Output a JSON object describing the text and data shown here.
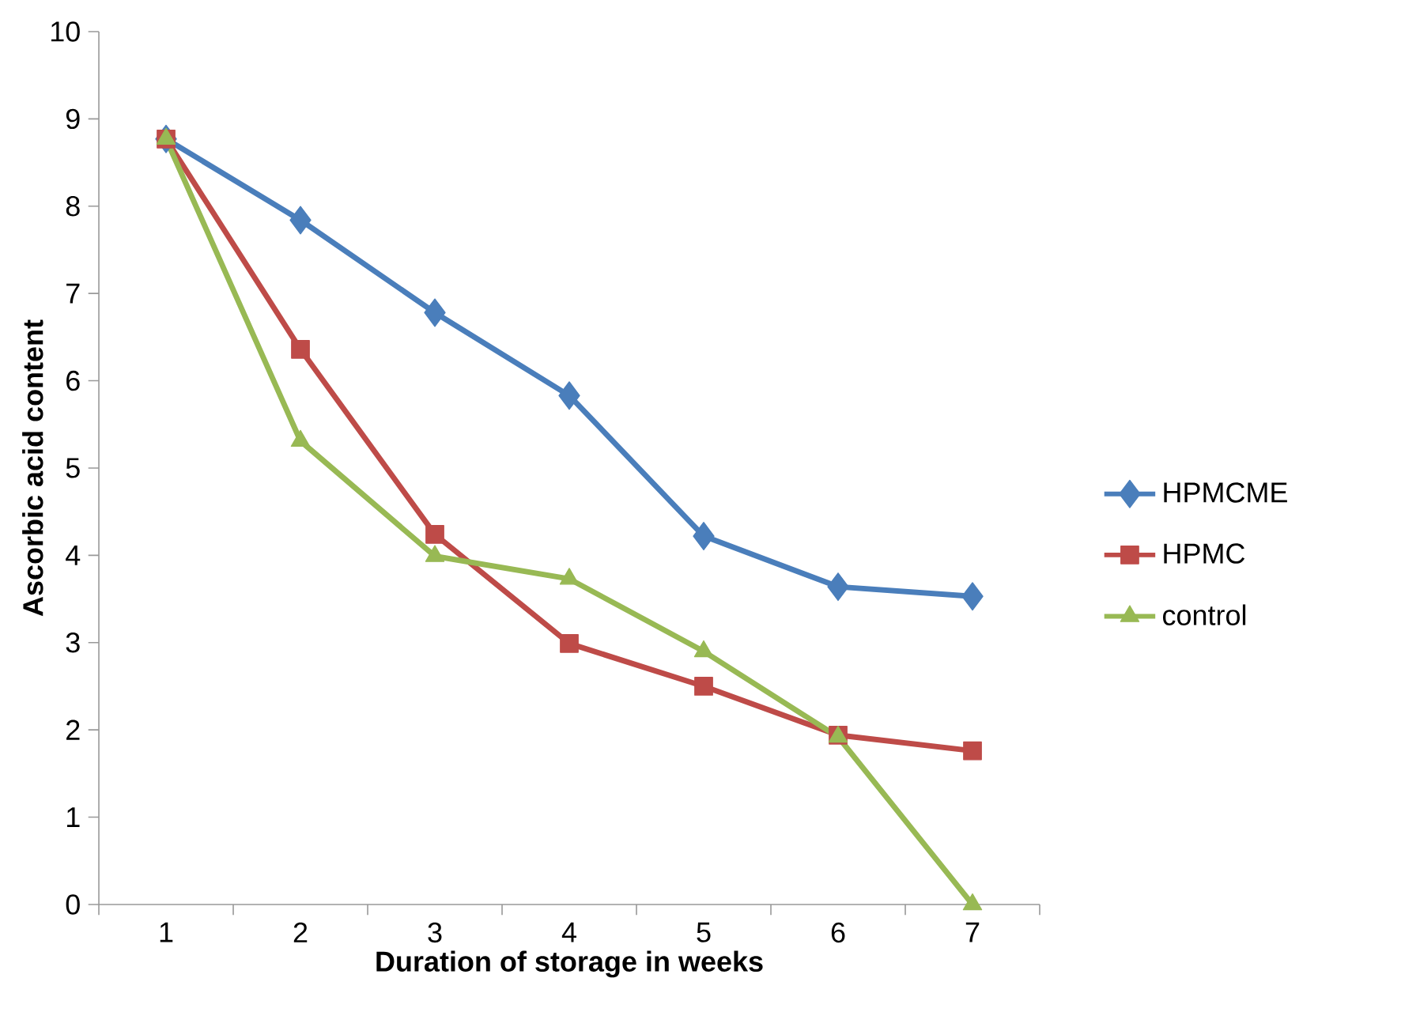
{
  "chart_data": {
    "type": "line",
    "xlabel": "Duration of storage in weeks",
    "ylabel": "Ascorbic acid content",
    "categories": [
      "1",
      "2",
      "3",
      "4",
      "5",
      "6",
      "7"
    ],
    "series": [
      {
        "name": "HPMCME",
        "color": "#4a7ebb",
        "marker": "diamond",
        "values": [
          8.77,
          7.84,
          6.78,
          5.83,
          4.22,
          3.64,
          3.53
        ]
      },
      {
        "name": "HPMC",
        "color": "#be4b48",
        "marker": "square",
        "values": [
          8.77,
          6.36,
          4.24,
          2.99,
          2.5,
          1.94,
          1.76
        ]
      },
      {
        "name": "control",
        "color": "#98b954",
        "marker": "triangle",
        "values": [
          8.77,
          5.31,
          3.99,
          3.73,
          2.9,
          1.92,
          0
        ]
      }
    ],
    "ylim": [
      0,
      10
    ],
    "yticks": [
      0,
      1,
      2,
      3,
      4,
      5,
      6,
      7,
      8,
      9,
      10
    ],
    "grid": false,
    "legend": "right"
  }
}
